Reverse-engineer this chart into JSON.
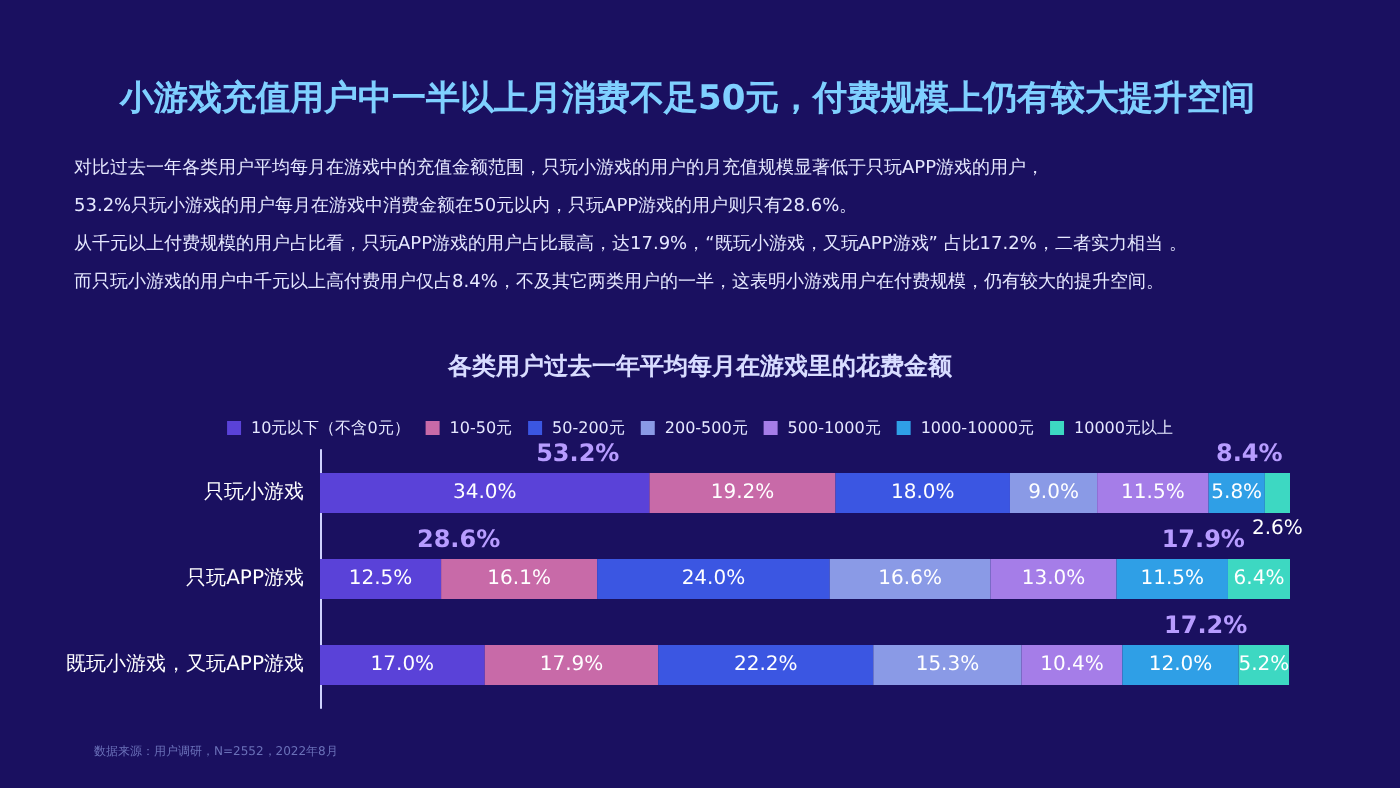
{
  "chart_data": {
    "type": "bar",
    "orientation": "horizontal",
    "stacked": true,
    "legend": "top",
    "title": "小游戏充值用户中一半以上月消费不足50元，付费规模上仍有较大提升空间",
    "subtitle": "各类用户过去一年平均每月在游戏里的花费金额",
    "categories": [
      "只玩小游戏",
      "只玩APP游戏",
      "既玩小游戏，又玩APP游戏"
    ],
    "series": [
      {
        "name": "10元以下（不含0元）",
        "color": "#5a42d8",
        "values": [
          34.0,
          12.5,
          17.0
        ],
        "value_labels": [
          "34.0%",
          "12.5%",
          "17.0%"
        ]
      },
      {
        "name": "10-50元",
        "color": "#c86aa8",
        "values": [
          19.2,
          16.1,
          17.9
        ],
        "value_labels": [
          "19.2%",
          "16.1%",
          "17.9%"
        ]
      },
      {
        "name": "50-200元",
        "color": "#3b56e2",
        "values": [
          18.0,
          24.0,
          22.2
        ],
        "value_labels": [
          "18.0%",
          "24.0%",
          "22.2%"
        ]
      },
      {
        "name": "200-500元",
        "color": "#8a9ae6",
        "values": [
          9.0,
          16.6,
          15.3
        ],
        "value_labels": [
          "9.0%",
          "16.6%",
          "15.3%"
        ]
      },
      {
        "name": "500-1000元",
        "color": "#a57de8",
        "values": [
          11.5,
          13.0,
          10.4
        ],
        "value_labels": [
          "11.5%",
          "13.0%",
          "10.4%"
        ]
      },
      {
        "name": "1000-10000元",
        "color": "#2f9fe6",
        "values": [
          5.8,
          11.5,
          12.0
        ],
        "value_labels": [
          "5.8%",
          "11.5%",
          "12.0%"
        ]
      },
      {
        "name": "10000元以上",
        "color": "#3dd8c2",
        "values": [
          2.6,
          6.4,
          5.2
        ],
        "value_labels": [
          "2.6%",
          "6.4%",
          "5.2%"
        ]
      }
    ],
    "annotations": [
      "对比过去一年各类用户平均每月在游戏中的充值金额范围，只玩小游戏的用户的月充值规模显著低于只玩APP游戏的用户，",
      "53.2%只玩小游戏的用户每月在游戏中消费金额在50元以内，只玩APP游戏的用户则只有28.6%。",
      "从千元以上付费规模的用户占比看，只玩APP游戏的用户占比最高，达17.9%，“既玩小游戏，又玩APP游戏” 占比17.2%，二者实力相当 。",
      "而只玩小游戏的用户中千元以上高付费用户仅占8.4%，不及其它两类用户的一半，这表明小游戏用户在付费规模，仍有较大的提升空间。",
      "数据来源：用户调研，N=2552，2022年8月",
      "53.2%",
      "8.4%",
      "28.6%",
      "17.9%",
      "17.2%"
    ]
  }
}
